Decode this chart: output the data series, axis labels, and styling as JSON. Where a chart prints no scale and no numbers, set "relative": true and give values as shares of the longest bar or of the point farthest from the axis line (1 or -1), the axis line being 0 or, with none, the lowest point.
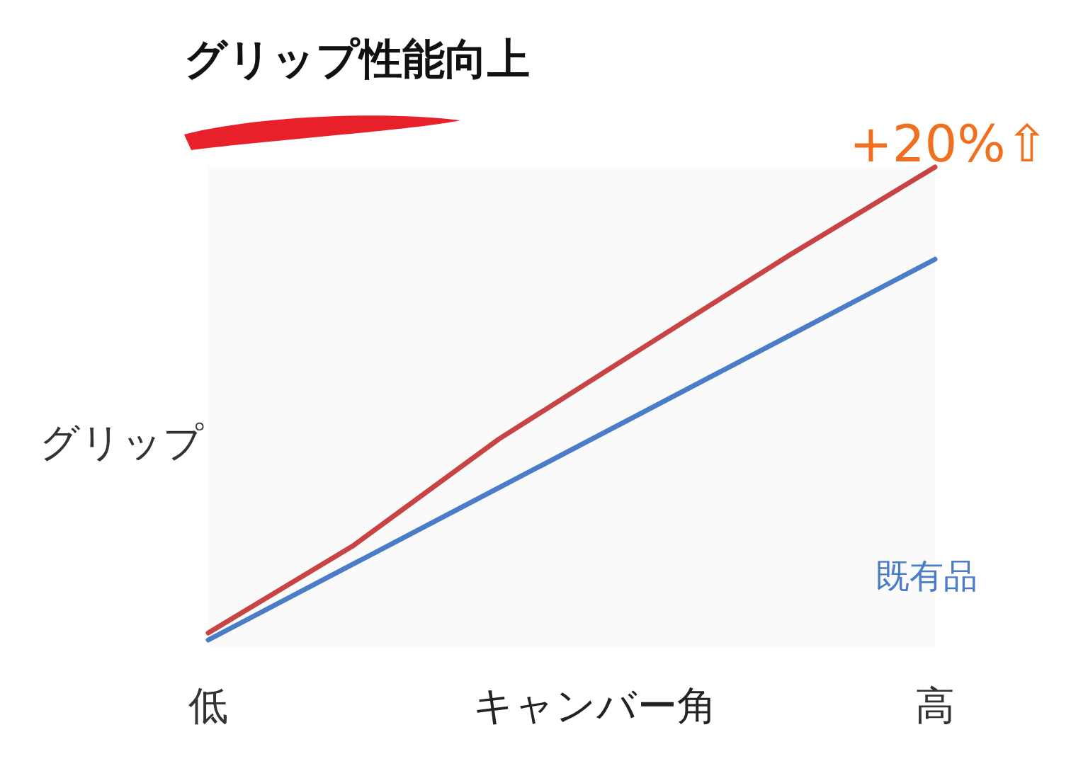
{
  "chart_data": {
    "type": "line",
    "title": "グリップ性能向上",
    "xlabel": "キャンバー角",
    "ylabel": "グリップ",
    "relative": true,
    "categories": [
      "低",
      null,
      null,
      null,
      null,
      "高"
    ],
    "legend": "right",
    "series": [
      {
        "color": "#c84444",
        "values": [
          0.015,
          0.2,
          0.425,
          0.62,
          0.814,
          1
        ]
      },
      {
        "name": "既有品",
        "color": "#4a7cc8",
        "values": [
          0,
          0.161,
          0.322,
          0.483,
          0.644,
          0.805
        ]
      }
    ],
    "annotations": [
      {
        "text": "+20%⇧",
        "x": "高",
        "y": 1
      }
    ]
  }
}
